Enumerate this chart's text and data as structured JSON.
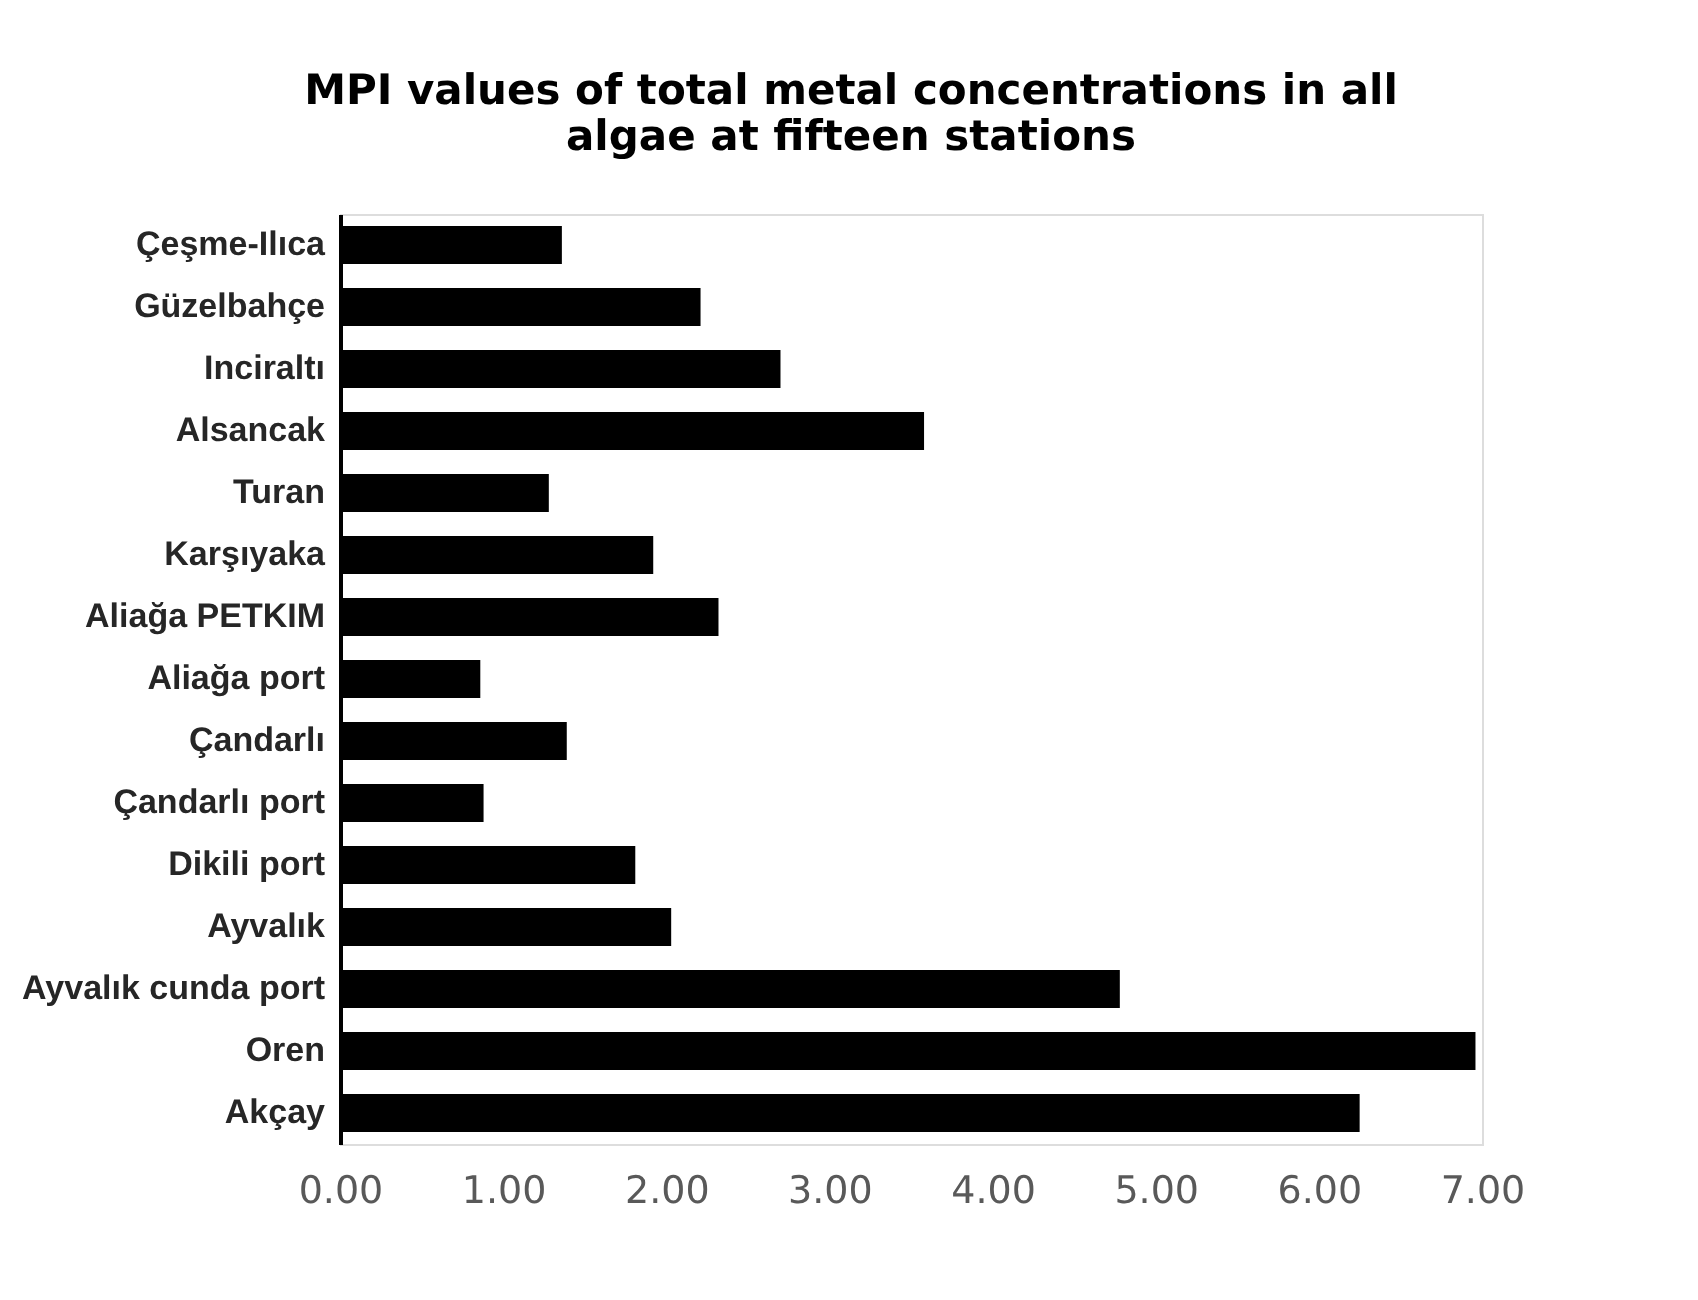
{
  "chart_data": {
    "type": "bar",
    "orientation": "horizontal",
    "title": "MPI values of total metal concentrations in all algae at fifteen stations",
    "categories": [
      "Çeşme-Ilıca",
      "Güzelbahçe",
      "Inciraltı",
      "Alsancak",
      "Turan",
      "Karşıyaka",
      "Aliağa PETKIM",
      "Aliağa port",
      "Çandarlı",
      "Çandarlı port",
      "Dikili port",
      "Ayvalık",
      "Ayvalık cunda port",
      "Oren",
      "Akçay"
    ],
    "values": [
      1.36,
      2.21,
      2.7,
      3.58,
      1.28,
      1.92,
      2.32,
      0.86,
      1.39,
      0.88,
      1.81,
      2.03,
      4.78,
      6.96,
      6.25
    ],
    "color": "#000000",
    "xlim": [
      0,
      7
    ],
    "xticks": [
      {
        "value": 0,
        "label": "0.00"
      },
      {
        "value": 1,
        "label": "1.00"
      },
      {
        "value": 2,
        "label": "2.00"
      },
      {
        "value": 3,
        "label": "3.00"
      },
      {
        "value": 4,
        "label": "4.00"
      },
      {
        "value": 5,
        "label": "5.00"
      },
      {
        "value": 6,
        "label": "6.00"
      },
      {
        "value": 7,
        "label": "7.00"
      }
    ],
    "grid": false
  }
}
